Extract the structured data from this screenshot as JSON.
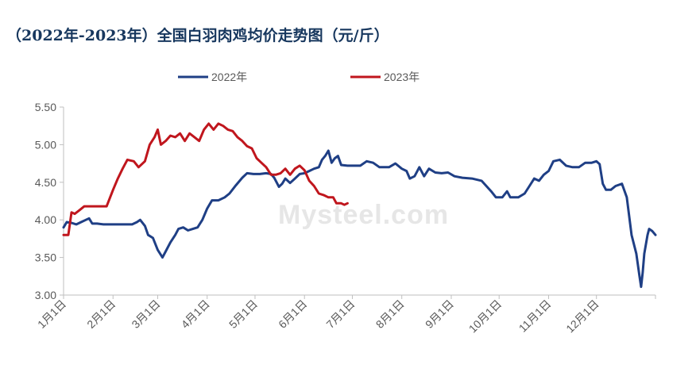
{
  "title": "（2022年-2023年）全国白羽肉鸡均价走势图（元/斤）",
  "watermark": "Mysteel.com",
  "colors": {
    "s2022": "#1f3f85",
    "s2023": "#c0161d",
    "axis": "#bfbfbf",
    "text": "#595959"
  },
  "chart_data": {
    "type": "line",
    "title": "（2022年-2023年）全国白羽肉鸡均价走势图（元/斤）",
    "xlabel": "",
    "ylabel": "",
    "ylim": [
      3.0,
      5.5
    ],
    "yticks": [
      "3.00",
      "3.50",
      "4.00",
      "4.50",
      "5.00",
      "5.50"
    ],
    "x_ticks": [
      "1月1日",
      "2月1日",
      "3月1日",
      "4月1日",
      "5月1日",
      "6月1日",
      "7月1日",
      "8月1日",
      "9月1日",
      "10月1日",
      "11月1日",
      "12月1日"
    ],
    "grid": false,
    "legend": "top-center",
    "series": [
      {
        "name": "2022年",
        "color": "#1f3f85",
        "points": [
          [
            "01-01",
            3.9
          ],
          [
            "01-03",
            3.97
          ],
          [
            "01-06",
            3.96
          ],
          [
            "01-09",
            3.94
          ],
          [
            "01-12",
            3.97
          ],
          [
            "01-15",
            4.0
          ],
          [
            "01-17",
            4.02
          ],
          [
            "01-19",
            3.95
          ],
          [
            "01-22",
            3.95
          ],
          [
            "01-26",
            3.94
          ],
          [
            "02-01",
            3.94
          ],
          [
            "02-08",
            3.94
          ],
          [
            "02-13",
            3.94
          ],
          [
            "02-16",
            3.97
          ],
          [
            "02-18",
            4.0
          ],
          [
            "02-21",
            3.92
          ],
          [
            "02-23",
            3.8
          ],
          [
            "02-26",
            3.76
          ],
          [
            "03-01",
            3.6
          ],
          [
            "03-04",
            3.5
          ],
          [
            "03-06",
            3.58
          ],
          [
            "03-09",
            3.7
          ],
          [
            "03-12",
            3.8
          ],
          [
            "03-14",
            3.88
          ],
          [
            "03-17",
            3.9
          ],
          [
            "03-20",
            3.86
          ],
          [
            "03-23",
            3.88
          ],
          [
            "03-26",
            3.9
          ],
          [
            "03-29",
            4.0
          ],
          [
            "04-01",
            4.15
          ],
          [
            "04-04",
            4.26
          ],
          [
            "04-08",
            4.26
          ],
          [
            "04-12",
            4.3
          ],
          [
            "04-15",
            4.35
          ],
          [
            "04-19",
            4.46
          ],
          [
            "04-23",
            4.56
          ],
          [
            "04-26",
            4.62
          ],
          [
            "04-30",
            4.61
          ],
          [
            "05-04",
            4.61
          ],
          [
            "05-08",
            4.62
          ],
          [
            "05-11",
            4.61
          ],
          [
            "05-13",
            4.56
          ],
          [
            "05-16",
            4.44
          ],
          [
            "05-18",
            4.48
          ],
          [
            "05-20",
            4.55
          ],
          [
            "05-23",
            4.49
          ],
          [
            "05-26",
            4.55
          ],
          [
            "05-29",
            4.61
          ],
          [
            "06-01",
            4.62
          ],
          [
            "06-04",
            4.65
          ],
          [
            "06-07",
            4.68
          ],
          [
            "06-10",
            4.7
          ],
          [
            "06-12",
            4.8
          ],
          [
            "06-14",
            4.85
          ],
          [
            "06-16",
            4.92
          ],
          [
            "06-18",
            4.76
          ],
          [
            "06-20",
            4.82
          ],
          [
            "06-22",
            4.85
          ],
          [
            "06-24",
            4.73
          ],
          [
            "06-28",
            4.72
          ],
          [
            "07-02",
            4.72
          ],
          [
            "07-06",
            4.72
          ],
          [
            "07-10",
            4.78
          ],
          [
            "07-14",
            4.76
          ],
          [
            "07-18",
            4.7
          ],
          [
            "07-24",
            4.7
          ],
          [
            "07-28",
            4.75
          ],
          [
            "08-01",
            4.68
          ],
          [
            "08-04",
            4.65
          ],
          [
            "08-06",
            4.55
          ],
          [
            "08-09",
            4.58
          ],
          [
            "08-12",
            4.7
          ],
          [
            "08-15",
            4.58
          ],
          [
            "08-18",
            4.68
          ],
          [
            "08-22",
            4.63
          ],
          [
            "08-26",
            4.62
          ],
          [
            "08-30",
            4.63
          ],
          [
            "09-03",
            4.58
          ],
          [
            "09-08",
            4.56
          ],
          [
            "09-14",
            4.55
          ],
          [
            "09-20",
            4.52
          ],
          [
            "09-23",
            4.45
          ],
          [
            "09-26",
            4.38
          ],
          [
            "09-29",
            4.3
          ],
          [
            "10-03",
            4.3
          ],
          [
            "10-06",
            4.38
          ],
          [
            "10-08",
            4.3
          ],
          [
            "10-13",
            4.3
          ],
          [
            "10-17",
            4.35
          ],
          [
            "10-20",
            4.45
          ],
          [
            "10-23",
            4.55
          ],
          [
            "10-26",
            4.52
          ],
          [
            "10-29",
            4.6
          ],
          [
            "11-01",
            4.65
          ],
          [
            "11-04",
            4.78
          ],
          [
            "11-08",
            4.8
          ],
          [
            "11-12",
            4.72
          ],
          [
            "11-16",
            4.7
          ],
          [
            "11-20",
            4.7
          ],
          [
            "11-24",
            4.76
          ],
          [
            "11-28",
            4.76
          ],
          [
            "12-01",
            4.78
          ],
          [
            "12-03",
            4.74
          ],
          [
            "12-05",
            4.48
          ],
          [
            "12-07",
            4.4
          ],
          [
            "12-10",
            4.4
          ],
          [
            "12-13",
            4.45
          ],
          [
            "12-17",
            4.48
          ],
          [
            "12-20",
            4.3
          ],
          [
            "12-23",
            3.8
          ],
          [
            "12-26",
            3.55
          ],
          [
            "12-28",
            3.25
          ],
          [
            "12-29",
            3.11
          ],
          [
            "12-30",
            3.3
          ],
          [
            "12-31",
            3.55
          ],
          [
            "01-02",
            3.8
          ],
          [
            "01-03",
            3.88
          ],
          [
            "01-05",
            3.85
          ],
          [
            "01-07",
            3.8
          ]
        ],
        "points_note_hidden": ""
      },
      {
        "name": "2023年",
        "color": "#c0161d",
        "points": [
          [
            "01-01",
            3.8
          ],
          [
            "01-04",
            3.8
          ],
          [
            "01-06",
            4.1
          ],
          [
            "01-08",
            4.08
          ],
          [
            "01-11",
            4.13
          ],
          [
            "01-14",
            4.18
          ],
          [
            "01-20",
            4.18
          ],
          [
            "01-28",
            4.18
          ],
          [
            "02-01",
            4.4
          ],
          [
            "02-04",
            4.55
          ],
          [
            "02-07",
            4.68
          ],
          [
            "02-10",
            4.8
          ],
          [
            "02-14",
            4.78
          ],
          [
            "02-17",
            4.7
          ],
          [
            "02-21",
            4.78
          ],
          [
            "02-24",
            5.0
          ],
          [
            "02-27",
            5.1
          ],
          [
            "03-01",
            5.2
          ],
          [
            "03-03",
            5.0
          ],
          [
            "03-06",
            5.05
          ],
          [
            "03-09",
            5.12
          ],
          [
            "03-12",
            5.1
          ],
          [
            "03-15",
            5.15
          ],
          [
            "03-18",
            5.05
          ],
          [
            "03-21",
            5.15
          ],
          [
            "03-24",
            5.1
          ],
          [
            "03-27",
            5.05
          ],
          [
            "03-30",
            5.2
          ],
          [
            "04-02",
            5.28
          ],
          [
            "04-05",
            5.2
          ],
          [
            "04-08",
            5.28
          ],
          [
            "04-11",
            5.25
          ],
          [
            "04-14",
            5.2
          ],
          [
            "04-17",
            5.18
          ],
          [
            "04-20",
            5.1
          ],
          [
            "04-23",
            5.05
          ],
          [
            "04-26",
            4.98
          ],
          [
            "04-29",
            4.95
          ],
          [
            "05-02",
            4.82
          ],
          [
            "05-05",
            4.76
          ],
          [
            "05-08",
            4.7
          ],
          [
            "05-11",
            4.6
          ],
          [
            "05-14",
            4.6
          ],
          [
            "05-17",
            4.62
          ],
          [
            "05-20",
            4.68
          ],
          [
            "05-23",
            4.6
          ],
          [
            "05-26",
            4.68
          ],
          [
            "05-29",
            4.72
          ],
          [
            "06-01",
            4.66
          ],
          [
            "06-04",
            4.52
          ],
          [
            "06-07",
            4.45
          ],
          [
            "06-10",
            4.35
          ],
          [
            "06-13",
            4.33
          ],
          [
            "06-16",
            4.3
          ],
          [
            "06-19",
            4.3
          ],
          [
            "06-21",
            4.22
          ],
          [
            "06-24",
            4.22
          ],
          [
            "06-26",
            4.2
          ],
          [
            "06-28",
            4.22
          ]
        ]
      }
    ]
  }
}
